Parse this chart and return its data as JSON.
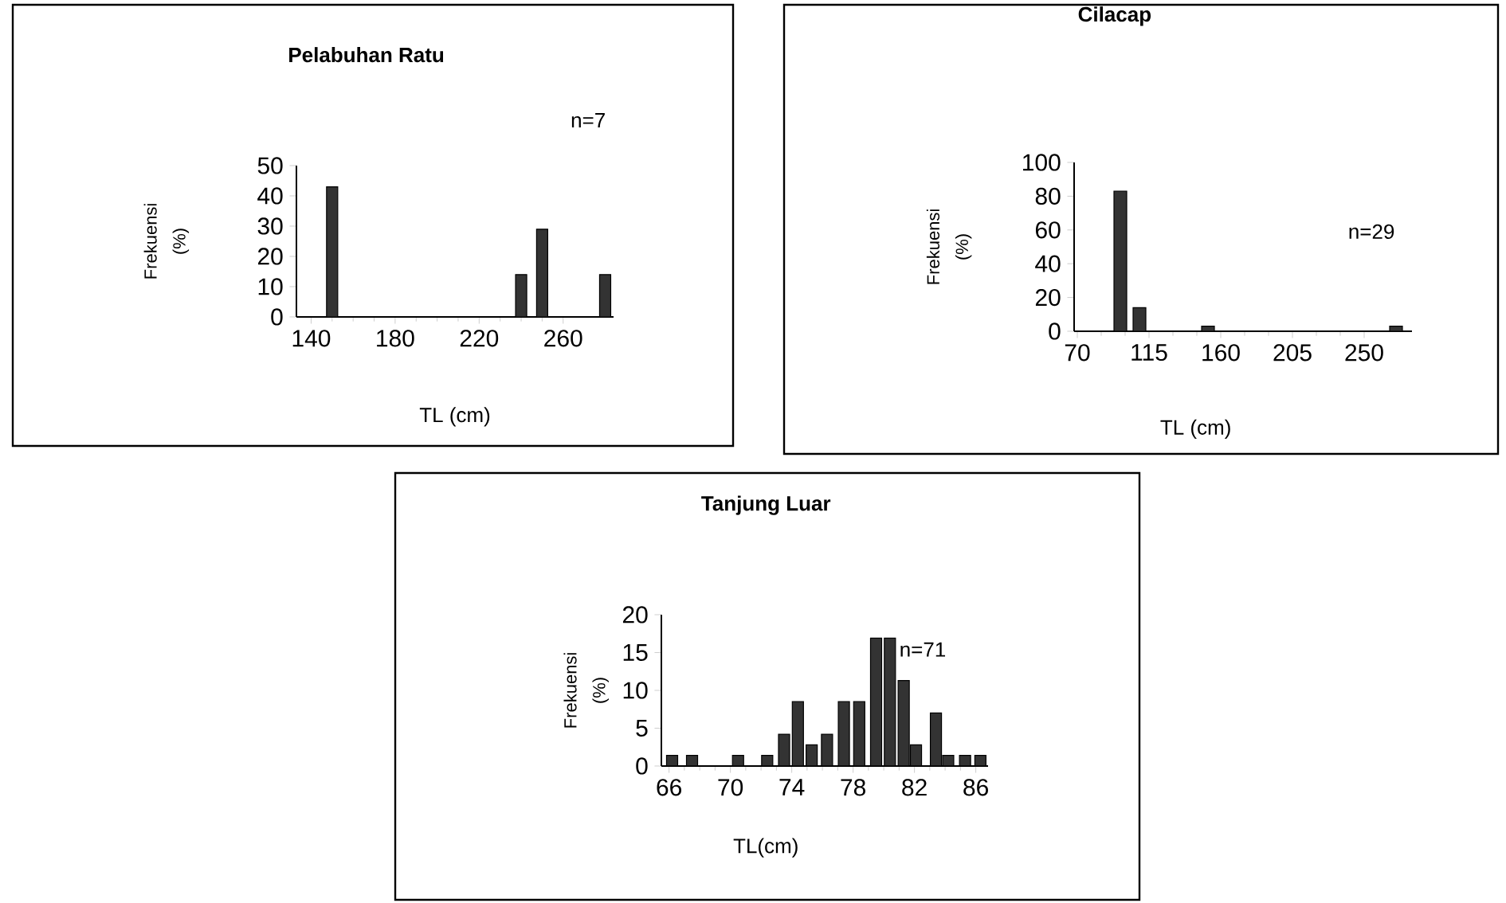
{
  "chart_data": [
    {
      "type": "bar",
      "title": "Pelabuhan Ratu",
      "xlabel": "TL (cm)",
      "ylabel": "Frekuensi (%)",
      "annotations": [
        "n=7"
      ],
      "x": [
        150,
        240,
        250,
        280
      ],
      "values": [
        43,
        14,
        29,
        14
      ],
      "color": "#333333",
      "xlim": [
        133,
        284
      ],
      "xticks": [
        140,
        180,
        220,
        260
      ],
      "ylim": [
        0,
        50
      ],
      "yticks": [
        0,
        10,
        20,
        30,
        40,
        50
      ]
    },
    {
      "type": "bar",
      "title": "Cilacap",
      "xlabel": "TL (cm)",
      "ylabel": "Frekuensi (%)",
      "annotations": [
        "n=29"
      ],
      "x": [
        97,
        109,
        152,
        270
      ],
      "values": [
        83,
        14,
        3,
        3
      ],
      "color": "#333333",
      "xlim": [
        68,
        280
      ],
      "xticks": [
        70,
        115,
        160,
        205,
        250
      ],
      "ylim": [
        0,
        100
      ],
      "yticks": [
        0,
        20,
        40,
        60,
        80,
        100
      ]
    },
    {
      "type": "bar",
      "title": "Tanjung Luar",
      "xlabel": "TL(cm)",
      "ylabel": "Frekuensi (%)",
      "annotations": [
        "n=71"
      ],
      "x": [
        66.2,
        67.5,
        70.5,
        72.4,
        73.5,
        74.4,
        75.3,
        76.3,
        77.4,
        78.4,
        79.5,
        80.4,
        81.3,
        82.1,
        83.4,
        84.2,
        85.3,
        86.3
      ],
      "values": [
        1.4,
        1.4,
        1.4,
        1.4,
        4.2,
        8.5,
        2.8,
        4.2,
        8.5,
        8.5,
        16.9,
        16.9,
        11.3,
        2.8,
        7.0,
        1.4,
        1.4,
        1.4
      ],
      "color": "#333333",
      "xlim": [
        65.5,
        86.8
      ],
      "xticks": [
        66,
        70,
        74,
        78,
        82,
        86
      ],
      "ylim": [
        0,
        20
      ],
      "yticks": [
        0,
        5,
        10,
        15,
        20
      ]
    }
  ]
}
